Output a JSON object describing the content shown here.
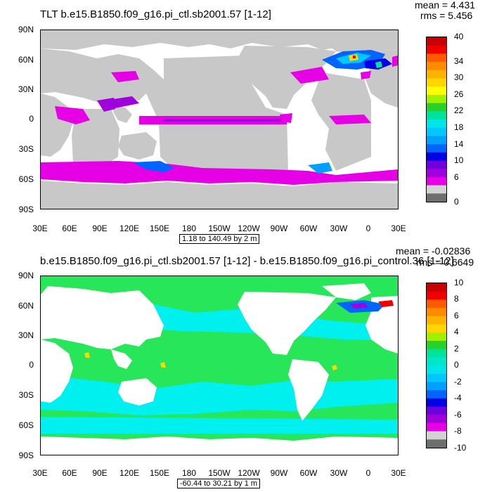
{
  "panels": [
    {
      "title": "TLT b.e15.B1850.f09_g16.pi_ctl.sb2001.57 [1-12]",
      "mean": "mean = 4.431",
      "rms": "rms = 5.456",
      "range_note": "1.18 to 140.49 by 2 m",
      "lat_labels": [
        "90N",
        "60N",
        "30N",
        "0",
        "30S",
        "60S",
        "90S"
      ],
      "lon_labels": [
        "30E",
        "60E",
        "90E",
        "120E",
        "150E",
        "180",
        "150W",
        "120W",
        "90W",
        "60W",
        "30W",
        "0",
        "30E"
      ],
      "colorbar_labels": [
        "40",
        "34",
        "30",
        "26",
        "22",
        "18",
        "14",
        "10",
        "6",
        "0"
      ],
      "colorbar_colors": [
        "#c80000",
        "#f00000",
        "#ff5a00",
        "#ff8c00",
        "#ffb300",
        "#ffd700",
        "#ffff00",
        "#a0f000",
        "#28d228",
        "#00e39a",
        "#00e6e6",
        "#00c8ff",
        "#00a0ff",
        "#0064ff",
        "#0000e6",
        "#6e00dc",
        "#a000dc",
        "#e600e6",
        "#d2d2d2",
        "#6e6e6e"
      ],
      "land_color": "#c8c8c8",
      "ocean_base_color": "#ffffff",
      "feature_color": "#e600e6"
    },
    {
      "title": "b.e15.B1850.f09_g16.pi_ctl.sb2001.57 [1-12] - b.e15.B1850.f09_g16.pi_control.36 [1-12]",
      "mean": "mean = -0.02836",
      "rms": "rms = 0.6649",
      "range_note": "-60.44 to 30.21 by 1 m",
      "lat_labels": [
        "90N",
        "60N",
        "30N",
        "0",
        "30S",
        "60S",
        "90S"
      ],
      "lon_labels": [
        "30E",
        "60E",
        "90E",
        "120E",
        "150E",
        "180",
        "150W",
        "120W",
        "90W",
        "60W",
        "30W",
        "0",
        "30E"
      ],
      "colorbar_labels": [
        "10",
        "8",
        "6",
        "4",
        "2",
        "0",
        "-2",
        "-4",
        "-6",
        "-8",
        "-10"
      ],
      "colorbar_colors": [
        "#c80000",
        "#f00000",
        "#ff5a00",
        "#ff8c00",
        "#ffb300",
        "#ffd700",
        "#a0f000",
        "#28d228",
        "#00e39a",
        "#00e6c8",
        "#00e6e6",
        "#00c8ff",
        "#00a0ff",
        "#0064ff",
        "#0000e6",
        "#6e00dc",
        "#a000dc",
        "#e600e6",
        "#d2d2d2",
        "#6e6e6e"
      ],
      "land_color": "#ffffff",
      "ocean_base_color": "#28e65a",
      "feature_color": "#00f0f0"
    }
  ]
}
